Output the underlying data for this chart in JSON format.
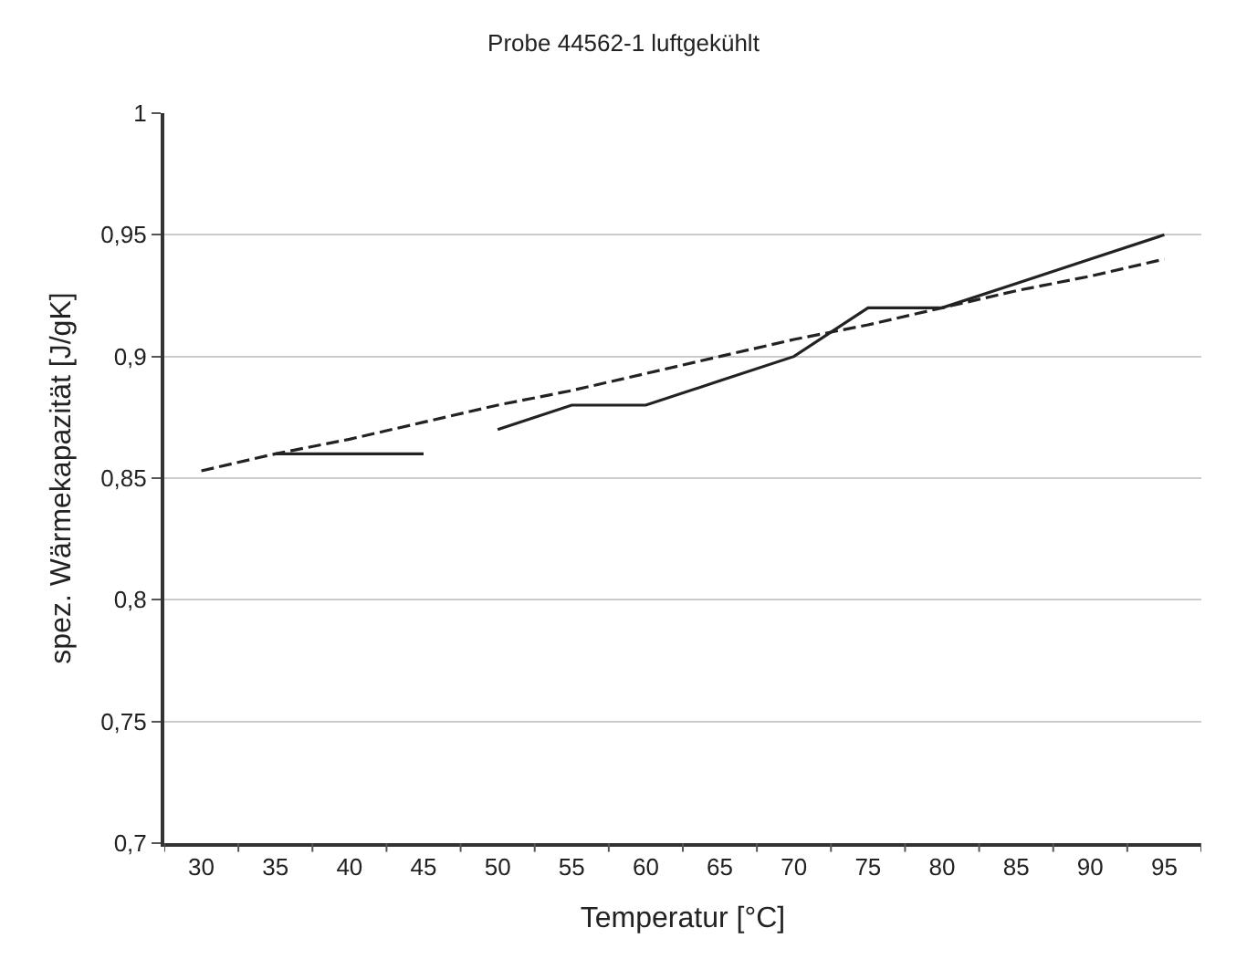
{
  "chart_data": {
    "type": "line",
    "title": "Probe 44562-1 luftgekühlt",
    "xlabel": "Temperatur [°C]",
    "ylabel": "spez. Wärmekapazität [J/gK]",
    "categories": [
      "30",
      "35",
      "40",
      "45",
      "50",
      "55",
      "60",
      "65",
      "70",
      "75",
      "80",
      "85",
      "90",
      "95"
    ],
    "series": [
      {
        "color": "#222222",
        "line_style": "solid",
        "values": [
          null,
          0.86,
          0.86,
          0.86,
          null,
          null,
          null,
          null,
          null,
          null,
          null,
          null,
          null,
          null
        ]
      },
      {
        "color": "#222222",
        "line_style": "solid",
        "values": [
          null,
          null,
          null,
          null,
          0.87,
          0.88,
          0.88,
          0.89,
          0.9,
          0.92,
          0.92,
          0.93,
          0.94,
          0.95
        ]
      },
      {
        "color": "#222222",
        "line_style": "dashed",
        "values": [
          0.853,
          0.86,
          0.866,
          0.873,
          0.88,
          0.886,
          0.893,
          0.9,
          0.907,
          0.913,
          0.92,
          0.927,
          0.933,
          0.94
        ]
      }
    ],
    "ylim": [
      0.7,
      1
    ],
    "yticks": [
      {
        "value": 0.7,
        "label": "0,7"
      },
      {
        "value": 0.75,
        "label": "0,75"
      },
      {
        "value": 0.8,
        "label": "0,8"
      },
      {
        "value": 0.85,
        "label": "0,85"
      },
      {
        "value": 0.9,
        "label": "0,9"
      },
      {
        "value": 0.95,
        "label": "0,95"
      },
      {
        "value": 1,
        "label": "1"
      }
    ],
    "grid": "y",
    "marker": "none"
  }
}
